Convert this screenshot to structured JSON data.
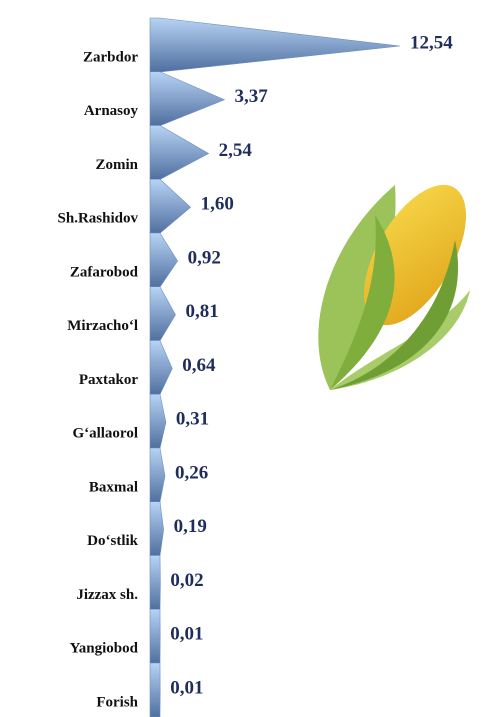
{
  "chart_data": {
    "type": "spike",
    "categories": [
      "Zarbdor",
      "Arnasoy",
      "Zomin",
      "Sh.Rashidov",
      "Zafarobod",
      "Mirzacho‘l",
      "Paxtakor",
      "G‘allaorol",
      "Baxmal",
      "Do‘stlik",
      "Jizzax sh.",
      "Yangiobod",
      "Forish"
    ],
    "values": [
      12.54,
      3.37,
      2.54,
      1.6,
      0.92,
      0.81,
      0.64,
      0.31,
      0.26,
      0.19,
      0.02,
      0.01,
      0.01
    ],
    "value_labels": [
      "12,54",
      "3,37",
      "2,54",
      "1,60",
      "0,92",
      "0,81",
      "0,64",
      "0,31",
      "0,26",
      "0,19",
      "0,02",
      "0,01",
      "0,01"
    ],
    "color": "#8fb4e3"
  }
}
